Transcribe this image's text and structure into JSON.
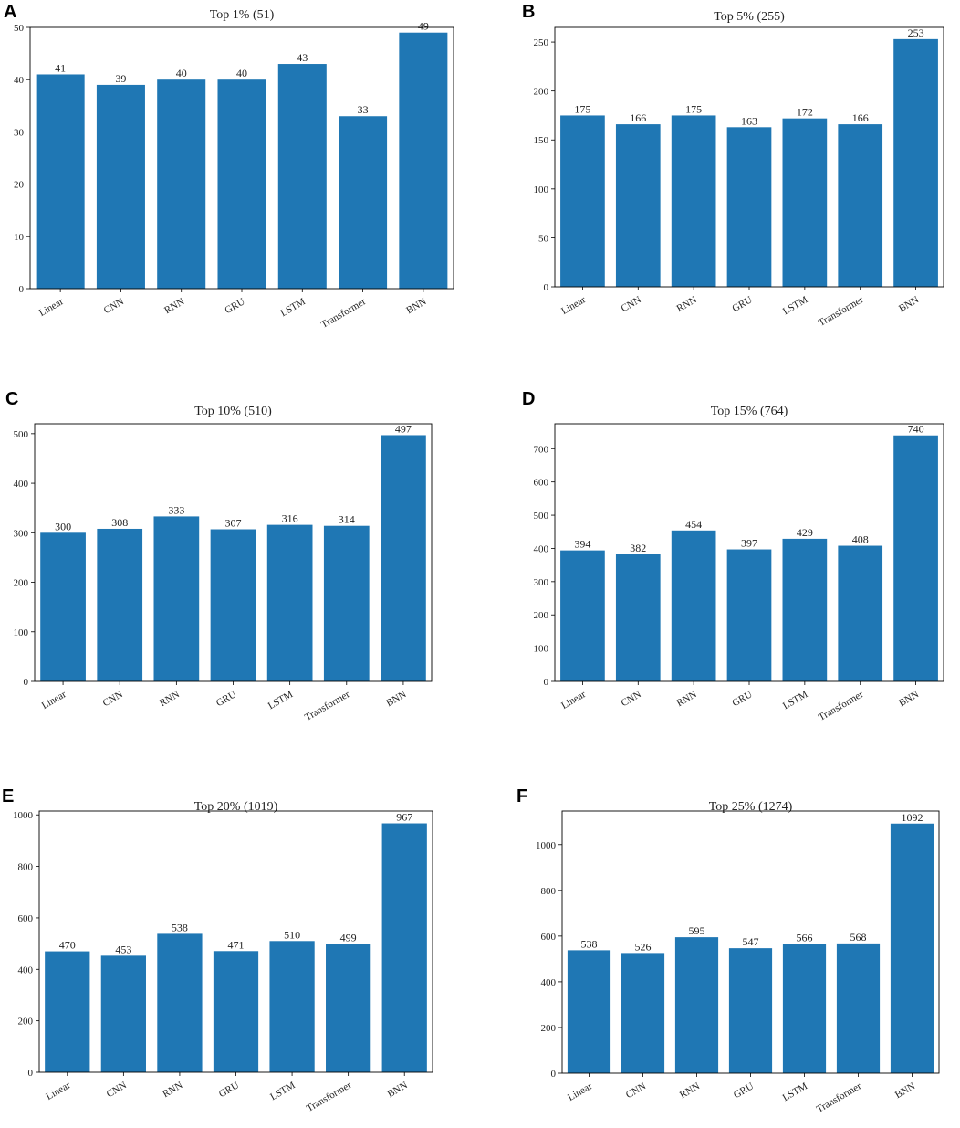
{
  "panel_letters": [
    "A",
    "B",
    "C",
    "D",
    "E",
    "F"
  ],
  "colors": {
    "bar": "#1f77b4",
    "axis": "#000000",
    "text": "#222222"
  },
  "chart_data": [
    {
      "type": "bar",
      "title": "Top 1% (51)",
      "xlabel": "",
      "ylabel": "",
      "categories": [
        "Linear",
        "CNN",
        "RNN",
        "GRU",
        "LSTM",
        "Transformer",
        "BNN"
      ],
      "values": [
        41,
        39,
        40,
        40,
        43,
        33,
        49
      ],
      "ylim": [
        0,
        50
      ],
      "yticks": [
        0,
        10,
        20,
        30,
        40,
        50
      ],
      "data_labels": [
        "41",
        "39",
        "40",
        "40",
        "43",
        "33",
        "49"
      ]
    },
    {
      "type": "bar",
      "title": "Top 5% (255)",
      "xlabel": "",
      "ylabel": "",
      "categories": [
        "Linear",
        "CNN",
        "RNN",
        "GRU",
        "LSTM",
        "Transformer",
        "BNN"
      ],
      "values": [
        175,
        166,
        175,
        163,
        172,
        166,
        253
      ],
      "ylim": [
        0,
        265
      ],
      "yticks": [
        0,
        50,
        100,
        150,
        200,
        250
      ],
      "data_labels": [
        "175",
        "166",
        "175",
        "163",
        "172",
        "166",
        "253"
      ]
    },
    {
      "type": "bar",
      "title": "Top 10% (510)",
      "xlabel": "",
      "ylabel": "",
      "categories": [
        "Linear",
        "CNN",
        "RNN",
        "GRU",
        "LSTM",
        "Transformer",
        "BNN"
      ],
      "values": [
        300,
        308,
        333,
        307,
        316,
        314,
        497
      ],
      "ylim": [
        0,
        520
      ],
      "yticks": [
        0,
        100,
        200,
        300,
        400,
        500
      ],
      "data_labels": [
        "300",
        "308",
        "333",
        "307",
        "316",
        "314",
        "497"
      ]
    },
    {
      "type": "bar",
      "title": "Top 15% (764)",
      "xlabel": "",
      "ylabel": "",
      "categories": [
        "Linear",
        "CNN",
        "RNN",
        "GRU",
        "LSTM",
        "Transformer",
        "BNN"
      ],
      "values": [
        394,
        382,
        454,
        397,
        429,
        408,
        740
      ],
      "ylim": [
        0,
        775
      ],
      "yticks": [
        0,
        100,
        200,
        300,
        400,
        500,
        600,
        700
      ],
      "data_labels": [
        "394",
        "382",
        "454",
        "397",
        "429",
        "408",
        "740"
      ]
    },
    {
      "type": "bar",
      "title": "Top 20% (1019)",
      "xlabel": "",
      "ylabel": "",
      "categories": [
        "Linear",
        "CNN",
        "RNN",
        "GRU",
        "LSTM",
        "Transformer",
        "BNN"
      ],
      "values": [
        470,
        453,
        538,
        471,
        510,
        499,
        967
      ],
      "ylim": [
        0,
        1015
      ],
      "yticks": [
        0,
        200,
        400,
        600,
        800,
        1000
      ],
      "data_labels": [
        "470",
        "453",
        "538",
        "471",
        "510",
        "499",
        "967"
      ]
    },
    {
      "type": "bar",
      "title": "Top 25% (1274)",
      "xlabel": "",
      "ylabel": "",
      "categories": [
        "Linear",
        "CNN",
        "RNN",
        "GRU",
        "LSTM",
        "Transformer",
        "BNN"
      ],
      "values": [
        538,
        526,
        595,
        547,
        566,
        568,
        1092
      ],
      "ylim": [
        0,
        1147
      ],
      "yticks": [
        0,
        200,
        400,
        600,
        800,
        1000
      ],
      "data_labels": [
        "538",
        "526",
        "595",
        "547",
        "566",
        "568",
        "1092"
      ]
    }
  ]
}
